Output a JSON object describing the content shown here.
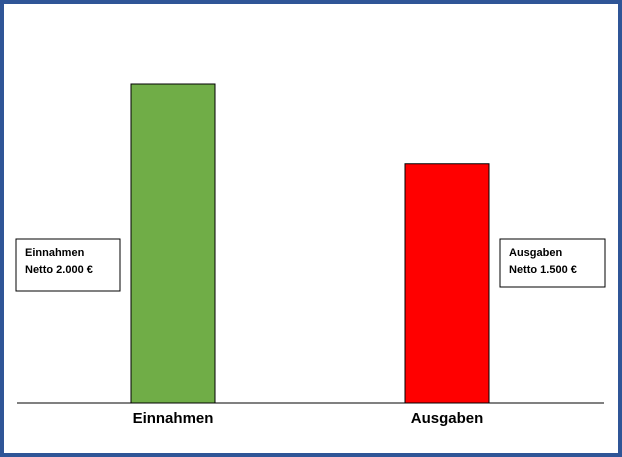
{
  "chart_data": {
    "type": "bar",
    "categories": [
      "Einnahmen",
      "Ausgaben"
    ],
    "values": [
      2000,
      1500
    ],
    "value_labels": [
      "Netto 2.000 €",
      "Netto 1.500 €"
    ],
    "colors": [
      "#70ad47",
      "#ff0000"
    ]
  }
}
